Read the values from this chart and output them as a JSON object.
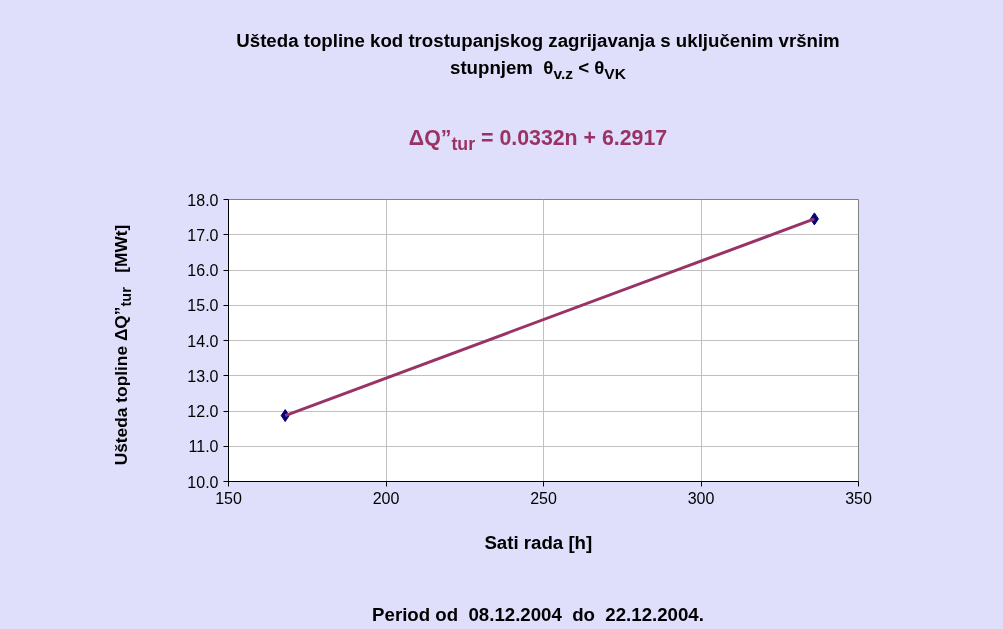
{
  "chart_data": {
    "type": "scatter",
    "title": "Ušteda topline kod trostupanjskog zagrijavanja s uključenim vršnim stupnjem  θ$_{v.z}$ < θ$_{VK}$",
    "xlabel": "Sati rada   [h]",
    "ylabel": "Ušteda topline ΔQ”$_{tur}$   [MWt]",
    "annotations": [
      "ΔQ”$_{tur}$ = 0.0332n + 6.2917",
      "Period od  08.12.2004  do  22.12.2004."
    ],
    "x": [
      168,
      336
    ],
    "series": [
      {
        "color": "#000080",
        "values": [
          11.87,
          17.45
        ],
        "marker": "diamond"
      },
      {
        "type": "line",
        "color": "#993366",
        "x": [
          168,
          336
        ],
        "values": [
          11.87,
          17.45
        ]
      }
    ],
    "xlim": [
      150,
      350
    ],
    "xticks": [
      150,
      200,
      250,
      300,
      350
    ],
    "ylim": [
      10,
      18
    ],
    "yticks": [
      {
        "value": 10,
        "label": "10.0"
      },
      {
        "value": 11,
        "label": "11.0"
      },
      {
        "value": 12,
        "label": "12.0"
      },
      {
        "value": 13,
        "label": "13.0"
      },
      {
        "value": 14,
        "label": "14.0"
      },
      {
        "value": 15,
        "label": "15.0"
      },
      {
        "value": 16,
        "label": "16.0"
      },
      {
        "value": 17,
        "label": "17.0"
      },
      {
        "value": 18,
        "label": "18.0"
      }
    ],
    "grid": true
  }
}
